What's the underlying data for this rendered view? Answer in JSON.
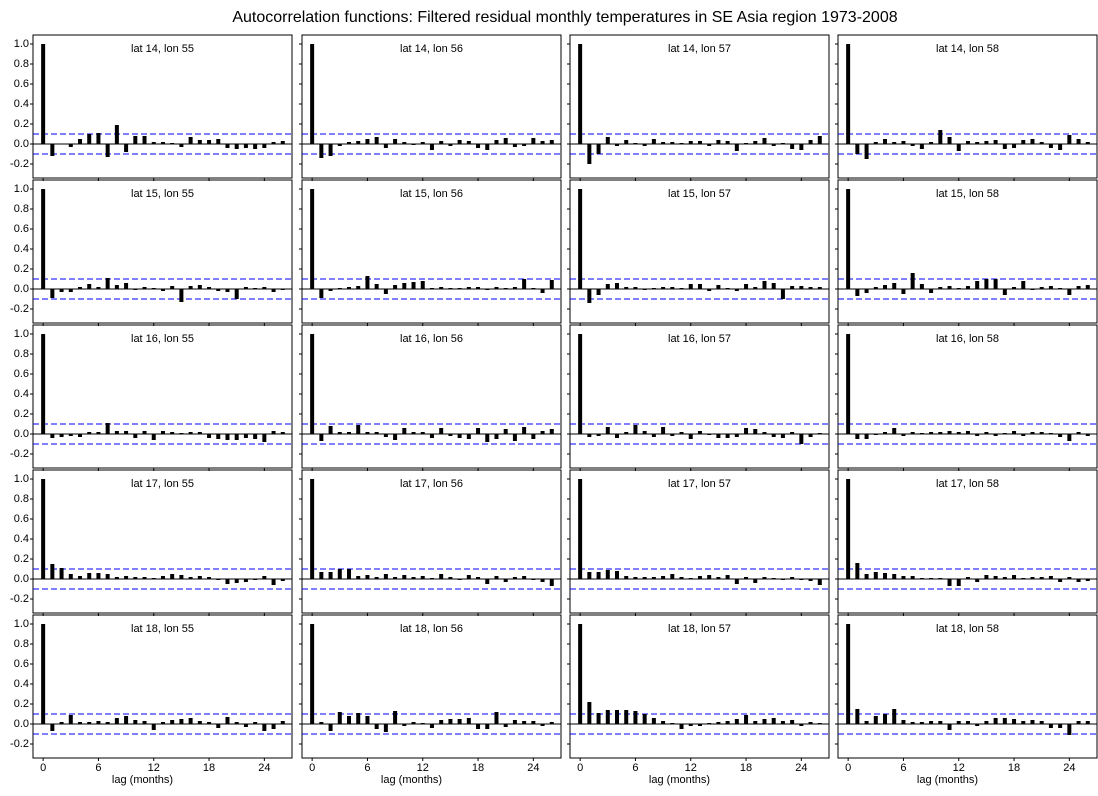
{
  "chart_data": {
    "type": "bar",
    "title": "Autocorrelation functions: Filtered residual monthly temperatures in SE Asia region 1973-2008",
    "xlabel": "lag (months)",
    "x": [
      0,
      1,
      2,
      3,
      4,
      5,
      6,
      7,
      8,
      9,
      10,
      11,
      12,
      13,
      14,
      15,
      16,
      17,
      18,
      19,
      20,
      21,
      22,
      23,
      24,
      25,
      26
    ],
    "xlim": [
      -1.1,
      27
    ],
    "xticks": [
      0,
      6,
      12,
      18,
      24
    ],
    "ylim": [
      -0.34,
      1.09
    ],
    "yticks": [
      {
        "value": 1,
        "label": "1.0"
      },
      0.8,
      0.6,
      0.4,
      0.2,
      {
        "value": 0,
        "label": "0.0"
      },
      -0.2
    ],
    "color": "#000000",
    "conf_limits": [
      0.1,
      -0.1
    ],
    "conf_color": "#0000ff",
    "panels": [
      {
        "title": "lat 14, lon 55",
        "values": [
          1,
          -0.12,
          0.0,
          -0.03,
          0.05,
          0.1,
          0.11,
          -0.13,
          0.19,
          -0.08,
          0.08,
          0.08,
          0.02,
          0.02,
          0.01,
          -0.03,
          0.07,
          0.04,
          0.04,
          0.05,
          -0.04,
          -0.05,
          -0.04,
          -0.05,
          -0.04,
          0.02,
          0.03
        ]
      },
      {
        "title": "lat 14, lon 56",
        "values": [
          1,
          -0.14,
          -0.12,
          -0.02,
          0.02,
          0.03,
          0.05,
          0.07,
          -0.04,
          0.05,
          0.02,
          -0.01,
          0.02,
          -0.06,
          0.03,
          -0.02,
          0.04,
          0.03,
          -0.04,
          -0.06,
          0.04,
          0.06,
          -0.03,
          -0.02,
          0.06,
          0.03,
          0.04
        ]
      },
      {
        "title": "lat 14, lon 57",
        "values": [
          1,
          -0.2,
          -0.1,
          0.07,
          -0.02,
          0.04,
          0.01,
          -0.02,
          0.05,
          0.02,
          0.02,
          0.01,
          0.03,
          0.03,
          -0.02,
          0.04,
          0.03,
          -0.07,
          0.01,
          0.03,
          0.06,
          -0.02,
          0.01,
          -0.05,
          -0.06,
          0.04,
          0.08
        ]
      },
      {
        "title": "lat 14, lon 58",
        "values": [
          1,
          -0.1,
          -0.15,
          0.02,
          0.05,
          0.02,
          0.03,
          -0.02,
          -0.05,
          0.02,
          0.14,
          0.07,
          -0.07,
          0.03,
          0.02,
          0.03,
          0.04,
          -0.05,
          -0.04,
          0.04,
          0.05,
          0.02,
          -0.04,
          -0.06,
          0.09,
          0.05,
          0.02
        ]
      },
      {
        "title": "lat 15, lon 55",
        "values": [
          1,
          -0.09,
          -0.03,
          -0.03,
          0.02,
          0.05,
          0.02,
          0.11,
          0.04,
          0.06,
          -0.01,
          0.02,
          0.01,
          -0.02,
          0.03,
          -0.13,
          0.03,
          0.04,
          0.02,
          -0.02,
          -0.03,
          -0.1,
          0.02,
          0.01,
          0.02,
          -0.03,
          -0.01
        ]
      },
      {
        "title": "lat 15, lon 56",
        "values": [
          1,
          -0.09,
          -0.02,
          0.01,
          0.02,
          0.03,
          0.13,
          0.05,
          -0.05,
          0.04,
          0.06,
          0.07,
          0.08,
          0.01,
          0.02,
          0.01,
          0.01,
          0.02,
          0.02,
          -0.01,
          0.02,
          0.01,
          0.02,
          0.1,
          0.01,
          -0.04,
          0.09
        ]
      },
      {
        "title": "lat 15, lon 57",
        "values": [
          1,
          -0.14,
          -0.06,
          0.05,
          0.06,
          0.02,
          0.02,
          -0.01,
          0.01,
          0.02,
          0.02,
          0.01,
          0.05,
          0.05,
          -0.02,
          0.04,
          0.01,
          -0.02,
          0.05,
          0.02,
          0.08,
          0.06,
          -0.1,
          0.03,
          0.03,
          0.02,
          0.02
        ]
      },
      {
        "title": "lat 15, lon 58",
        "values": [
          1,
          -0.07,
          -0.04,
          0.02,
          0.04,
          0.06,
          -0.05,
          0.16,
          0.05,
          -0.04,
          0.02,
          0.03,
          0.01,
          0.03,
          0.08,
          0.1,
          0.1,
          -0.06,
          0.02,
          0.08,
          -0.01,
          0.02,
          0.03,
          0.01,
          -0.06,
          0.03,
          0.04
        ]
      },
      {
        "title": "lat 16, lon 55",
        "values": [
          1,
          -0.04,
          -0.03,
          -0.02,
          -0.03,
          0.02,
          0.02,
          0.11,
          0.03,
          0.03,
          -0.04,
          0.03,
          -0.06,
          0.03,
          0.02,
          0.01,
          0.02,
          0.02,
          -0.04,
          -0.05,
          -0.06,
          -0.06,
          -0.04,
          -0.05,
          -0.08,
          0.03,
          0.02
        ]
      },
      {
        "title": "lat 16, lon 56",
        "values": [
          1,
          -0.07,
          0.08,
          0.02,
          0.02,
          0.09,
          0.02,
          0.02,
          -0.03,
          -0.06,
          0.06,
          0.02,
          0.02,
          -0.04,
          0.06,
          -0.02,
          -0.04,
          -0.05,
          0.06,
          -0.08,
          -0.05,
          0.05,
          -0.07,
          0.07,
          -0.05,
          0.03,
          0.05
        ]
      },
      {
        "title": "lat 16, lon 57",
        "values": [
          1,
          -0.03,
          -0.02,
          0.07,
          -0.04,
          0.02,
          0.09,
          0.03,
          -0.03,
          0.07,
          -0.02,
          0.02,
          -0.05,
          0.03,
          -0.01,
          -0.04,
          -0.04,
          -0.03,
          0.06,
          0.05,
          0.02,
          -0.03,
          -0.04,
          0.02,
          -0.1,
          -0.03,
          0.01
        ]
      },
      {
        "title": "lat 16, lon 58",
        "values": [
          1,
          -0.05,
          -0.05,
          -0.01,
          0.02,
          0.06,
          -0.02,
          0.02,
          0.01,
          0.02,
          0.02,
          0.03,
          0.02,
          0.03,
          -0.02,
          0.02,
          -0.02,
          0.01,
          0.03,
          -0.02,
          0.02,
          0.02,
          0.01,
          -0.03,
          -0.07,
          0.02,
          -0.02
        ]
      },
      {
        "title": "lat 17, lon 55",
        "values": [
          1,
          0.15,
          0.11,
          0.05,
          0.03,
          0.06,
          0.06,
          0.05,
          0.02,
          0.03,
          0.02,
          0.02,
          0.01,
          0.03,
          0.05,
          0.04,
          0.02,
          0.03,
          0.02,
          -0.01,
          -0.05,
          -0.04,
          -0.03,
          -0.01,
          0.03,
          -0.06,
          -0.02
        ]
      },
      {
        "title": "lat 17, lon 56",
        "values": [
          1,
          0.07,
          0.07,
          0.1,
          0.1,
          0.03,
          0.04,
          0.02,
          0.05,
          0.02,
          0.04,
          0.02,
          0.03,
          0.01,
          0.05,
          0.02,
          -0.01,
          0.04,
          0.02,
          -0.05,
          0.03,
          -0.03,
          0.02,
          0.03,
          -0.01,
          -0.03,
          -0.07
        ]
      },
      {
        "title": "lat 17, lon 57",
        "values": [
          1,
          0.07,
          0.07,
          0.09,
          0.08,
          0.03,
          0.02,
          0.02,
          0.02,
          0.03,
          0.05,
          0.02,
          0.01,
          0.03,
          0.04,
          0.02,
          0.04,
          -0.05,
          0.02,
          -0.04,
          0.02,
          0.01,
          -0.01,
          0.02,
          -0.01,
          -0.02,
          -0.06
        ]
      },
      {
        "title": "lat 17, lon 58",
        "values": [
          1,
          0.16,
          0.05,
          0.07,
          0.06,
          0.05,
          0.03,
          0.03,
          0.01,
          0.01,
          0.01,
          -0.07,
          -0.07,
          0.02,
          -0.03,
          0.04,
          0.03,
          0.02,
          0.04,
          0.01,
          0.02,
          0.02,
          0.03,
          -0.03,
          0.02,
          -0.03,
          -0.02
        ]
      },
      {
        "title": "lat 18, lon 55",
        "values": [
          1,
          -0.07,
          0.02,
          0.09,
          0.02,
          0.02,
          0.03,
          0.02,
          0.06,
          0.08,
          0.04,
          0.03,
          -0.06,
          0.02,
          0.04,
          0.05,
          0.06,
          0.03,
          0.02,
          -0.04,
          0.07,
          0.02,
          -0.03,
          0.02,
          -0.07,
          -0.05,
          0.03
        ]
      },
      {
        "title": "lat 18, lon 56",
        "values": [
          1,
          0.02,
          -0.07,
          0.12,
          0.08,
          0.11,
          0.08,
          -0.05,
          -0.08,
          0.13,
          -0.02,
          0.02,
          0.01,
          -0.04,
          0.04,
          0.05,
          0.05,
          0.06,
          -0.05,
          -0.05,
          0.12,
          -0.03,
          0.04,
          0.03,
          0.03,
          -0.02,
          0.02
        ]
      },
      {
        "title": "lat 18, lon 57",
        "values": [
          1,
          0.22,
          0.11,
          0.14,
          0.14,
          0.14,
          0.13,
          0.1,
          0.06,
          0.03,
          0.01,
          -0.05,
          -0.02,
          -0.02,
          0.01,
          0.02,
          0.03,
          0.05,
          0.09,
          0.03,
          0.05,
          0.06,
          0.03,
          0.04,
          -0.02,
          0.02,
          0.01
        ]
      },
      {
        "title": "lat 18, lon 58",
        "values": [
          1,
          0.15,
          0.03,
          0.08,
          0.1,
          0.15,
          0.04,
          0.02,
          0.02,
          0.03,
          0.03,
          -0.06,
          0.03,
          0.03,
          -0.02,
          0.03,
          0.06,
          0.06,
          0.05,
          0.03,
          0.04,
          0.03,
          -0.04,
          -0.04,
          -0.11,
          0.03,
          0.03
        ]
      }
    ]
  }
}
